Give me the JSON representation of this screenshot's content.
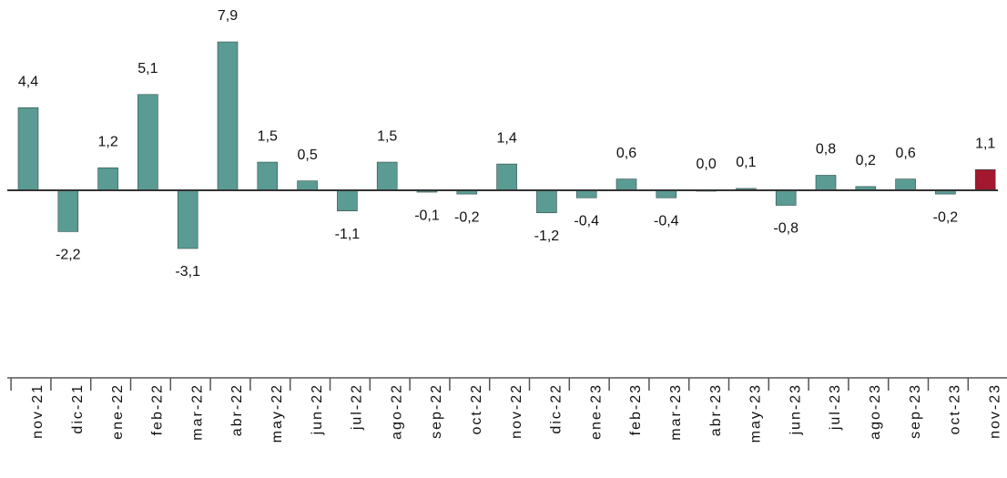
{
  "chart_data": {
    "type": "bar",
    "categories": [
      "nov-21",
      "dic-21",
      "ene-22",
      "feb-22",
      "mar-22",
      "abr-22",
      "may-22",
      "jun-22",
      "jul-22",
      "ago-22",
      "sep-22",
      "oct-22",
      "nov-22",
      "dic-22",
      "ene-23",
      "feb-23",
      "mar-23",
      "abr-23",
      "may-23",
      "jun-23",
      "jul-23",
      "ago-23",
      "sep-23",
      "oct-23",
      "nov-23"
    ],
    "values": [
      4.4,
      -2.2,
      1.2,
      5.1,
      -3.1,
      7.9,
      1.5,
      0.5,
      -1.1,
      1.5,
      -0.1,
      -0.2,
      1.4,
      -1.2,
      -0.4,
      0.6,
      -0.4,
      0.0,
      0.1,
      -0.8,
      0.8,
      0.2,
      0.6,
      -0.2,
      1.1
    ],
    "value_labels": [
      "4,4",
      "-2,2",
      "1,2",
      "5,1",
      "-3,1",
      "7,9",
      "1,5",
      "0,5",
      "-1,1",
      "1,5",
      "-0,1",
      "-0,2",
      "1,4",
      "-1,2",
      "-0,4",
      "0,6",
      "-0,4",
      "0,0",
      "0,1",
      "-0,8",
      "0,8",
      "0,2",
      "0,6",
      "-0,2",
      "1,1"
    ],
    "colors": [
      "#5a9b94",
      "#5a9b94",
      "#5a9b94",
      "#5a9b94",
      "#5a9b94",
      "#5a9b94",
      "#5a9b94",
      "#5a9b94",
      "#5a9b94",
      "#5a9b94",
      "#5a9b94",
      "#5a9b94",
      "#5a9b94",
      "#5a9b94",
      "#5a9b94",
      "#5a9b94",
      "#5a9b94",
      "#5a9b94",
      "#5a9b94",
      "#5a9b94",
      "#5a9b94",
      "#5a9b94",
      "#5a9b94",
      "#5a9b94",
      "#a3182f"
    ]
  }
}
